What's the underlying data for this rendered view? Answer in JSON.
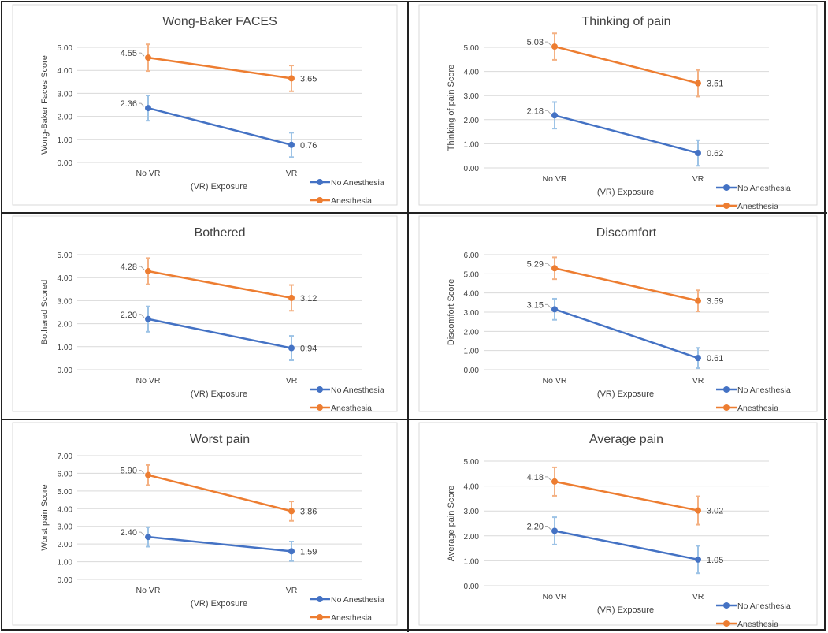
{
  "chart_data": [
    {
      "type": "line",
      "title": "Wong-Baker FACES",
      "xlabel": "(VR) Exposure",
      "ylabel": "Wong-Baker Faces Score",
      "categories": [
        "No VR",
        "VR"
      ],
      "ylim": [
        0,
        5
      ],
      "yticks": [
        "0.00",
        "1.00",
        "2.00",
        "3.00",
        "4.00",
        "5.00"
      ],
      "series": [
        {
          "name": "No Anesthesia",
          "values": [
            2.36,
            0.76
          ],
          "labels": [
            "2.36",
            "0.76"
          ],
          "error": [
            0.55,
            0.53
          ]
        },
        {
          "name": "Anesthesia",
          "values": [
            4.55,
            3.65
          ],
          "labels": [
            "4.55",
            "3.65"
          ],
          "error": [
            0.58,
            0.56
          ]
        }
      ],
      "legend": "bottom-right",
      "grid": true
    },
    {
      "type": "line",
      "title": "Thinking of pain",
      "xlabel": "(VR) Exposure",
      "ylabel": "Thinking of pain Score",
      "categories": [
        "No VR",
        "VR"
      ],
      "ylim": [
        0,
        5
      ],
      "yticks": [
        "0.00",
        "1.00",
        "2.00",
        "3.00",
        "4.00",
        "5.00"
      ],
      "series": [
        {
          "name": "No Anesthesia",
          "values": [
            2.18,
            0.62
          ],
          "labels": [
            "2.18",
            "0.62"
          ],
          "error": [
            0.55,
            0.53
          ]
        },
        {
          "name": "Anesthesia",
          "values": [
            5.03,
            3.51
          ],
          "labels": [
            "5.03",
            "3.51"
          ],
          "error": [
            0.55,
            0.55
          ]
        }
      ],
      "legend": "bottom-right",
      "grid": true
    },
    {
      "type": "line",
      "title": "Bothered",
      "xlabel": "(VR) Exposure",
      "ylabel": "Bothered Scored",
      "categories": [
        "No VR",
        "VR"
      ],
      "ylim": [
        0,
        5
      ],
      "yticks": [
        "0.00",
        "1.00",
        "2.00",
        "3.00",
        "4.00",
        "5.00"
      ],
      "series": [
        {
          "name": "No Anesthesia",
          "values": [
            2.2,
            0.94
          ],
          "labels": [
            "2.20",
            "0.94"
          ],
          "error": [
            0.55,
            0.53
          ]
        },
        {
          "name": "Anesthesia",
          "values": [
            4.28,
            3.12
          ],
          "labels": [
            "4.28",
            "3.12"
          ],
          "error": [
            0.57,
            0.56
          ]
        }
      ],
      "legend": "bottom-right",
      "grid": true
    },
    {
      "type": "line",
      "title": "Discomfort",
      "xlabel": "(VR) Exposure",
      "ylabel": "Discomfort Score",
      "categories": [
        "No VR",
        "VR"
      ],
      "ylim": [
        0,
        6
      ],
      "yticks": [
        "0.00",
        "1.00",
        "2.00",
        "3.00",
        "4.00",
        "5.00",
        "6.00"
      ],
      "series": [
        {
          "name": "No Anesthesia",
          "values": [
            3.15,
            0.61
          ],
          "labels": [
            "3.15",
            "0.61"
          ],
          "error": [
            0.55,
            0.53
          ]
        },
        {
          "name": "Anesthesia",
          "values": [
            5.29,
            3.59
          ],
          "labels": [
            "5.29",
            "3.59"
          ],
          "error": [
            0.57,
            0.55
          ]
        }
      ],
      "legend": "bottom-right",
      "grid": true
    },
    {
      "type": "line",
      "title": "Worst pain",
      "xlabel": "(VR) Exposure",
      "ylabel": "Worst pain Score",
      "categories": [
        "No VR",
        "VR"
      ],
      "ylim": [
        0,
        7
      ],
      "yticks": [
        "0.00",
        "1.00",
        "2.00",
        "3.00",
        "4.00",
        "5.00",
        "6.00",
        "7.00"
      ],
      "series": [
        {
          "name": "No Anesthesia",
          "values": [
            2.4,
            1.59
          ],
          "labels": [
            "2.40",
            "1.59"
          ],
          "error": [
            0.55,
            0.55
          ]
        },
        {
          "name": "Anesthesia",
          "values": [
            5.9,
            3.86
          ],
          "labels": [
            "5.90",
            "3.86"
          ],
          "error": [
            0.57,
            0.55
          ]
        }
      ],
      "legend": "bottom-right",
      "grid": true
    },
    {
      "type": "line",
      "title": "Average pain",
      "xlabel": "(VR) Exposure",
      "ylabel": "Average pain Score",
      "categories": [
        "No VR",
        "VR"
      ],
      "ylim": [
        0,
        5
      ],
      "yticks": [
        "0.00",
        "1.00",
        "2.00",
        "3.00",
        "4.00",
        "5.00"
      ],
      "series": [
        {
          "name": "No Anesthesia",
          "values": [
            2.2,
            1.05
          ],
          "labels": [
            "2.20",
            "1.05"
          ],
          "error": [
            0.55,
            0.55
          ]
        },
        {
          "name": "Anesthesia",
          "values": [
            4.18,
            3.02
          ],
          "labels": [
            "4.18",
            "3.02"
          ],
          "error": [
            0.57,
            0.57
          ]
        }
      ],
      "legend": "bottom-right",
      "grid": true
    }
  ],
  "colors": {
    "No Anesthesia": "#4472C4",
    "Anesthesia": "#ED7D31",
    "No Anesthesia_err": "#9DC3E6",
    "Anesthesia_err": "#F4B183"
  }
}
